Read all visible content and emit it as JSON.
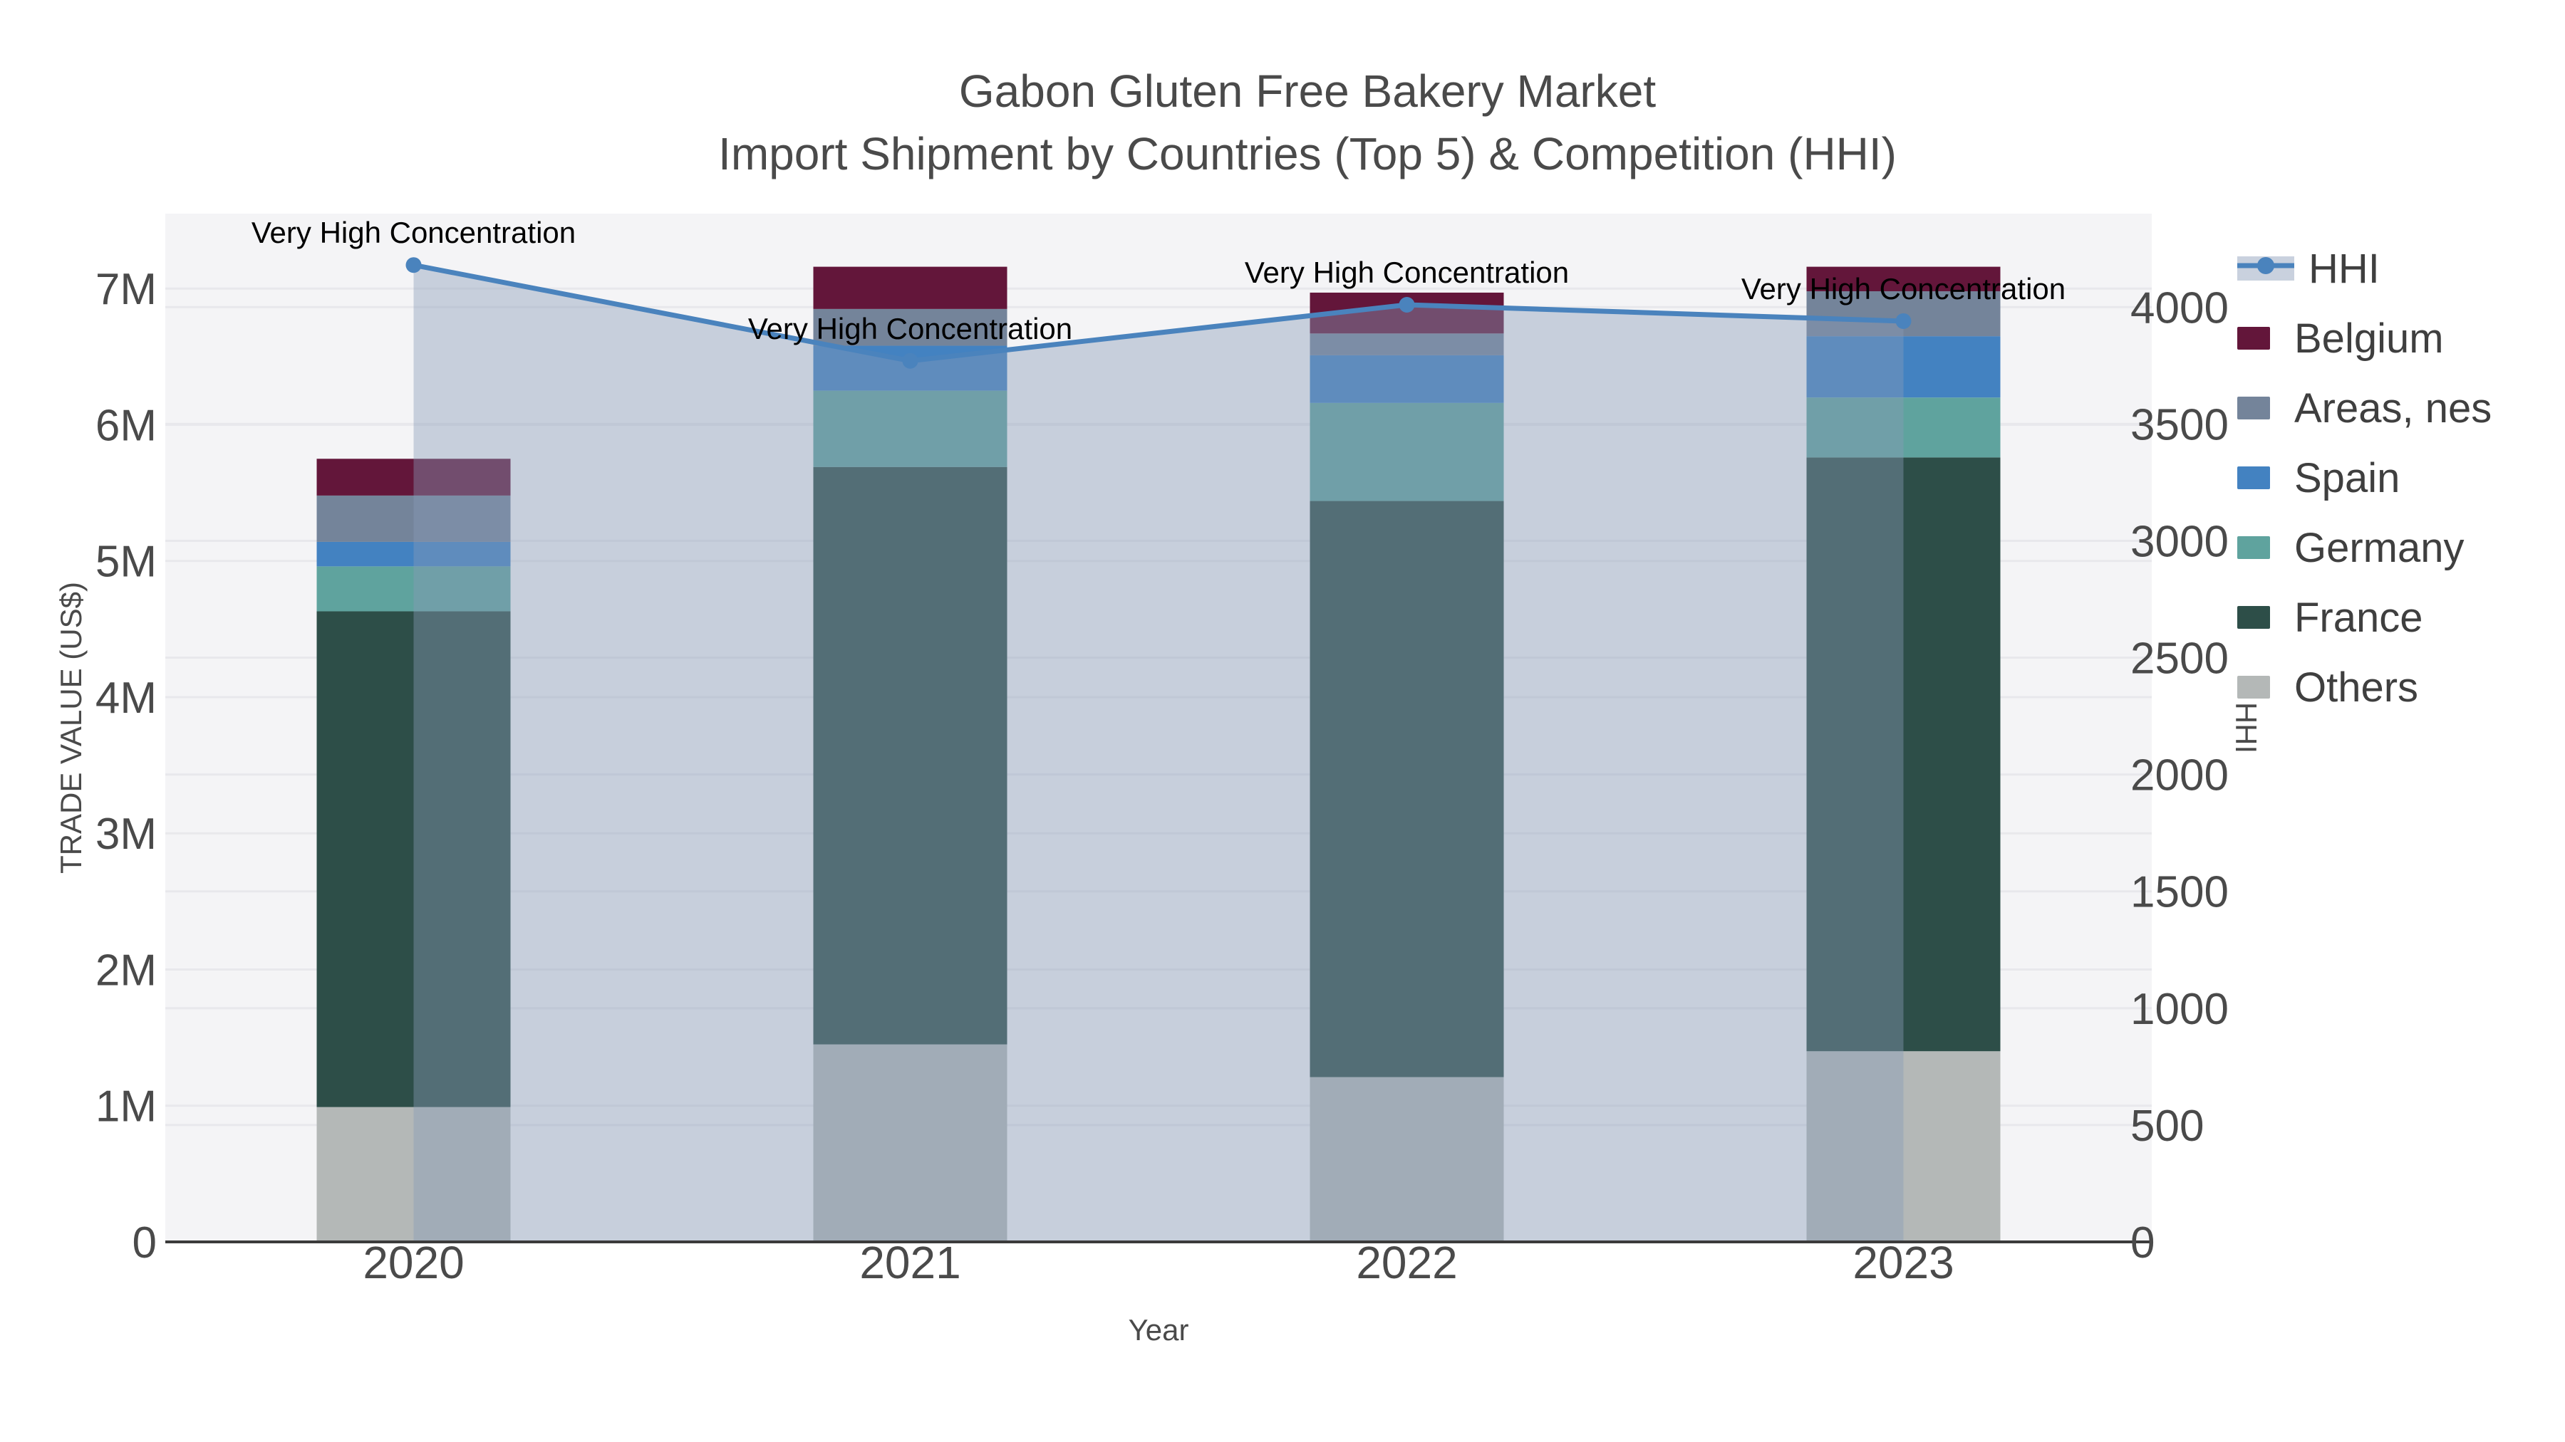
{
  "title": {
    "line1": "Gabon Gluten Free Bakery Market",
    "line2": "Import Shipment by Countries (Top 5) & Competition (HHI)"
  },
  "chart_data": {
    "type": "bar",
    "subtype": "stacked-bars-with-line-area-dual-axis",
    "categories": [
      "2020",
      "2021",
      "2022",
      "2023"
    ],
    "x_title": "Year",
    "y_left": {
      "title": "TRADE VALUE (US$)",
      "unit": "US$ (millions shown as M)",
      "tick_labels": [
        "0",
        "1M",
        "2M",
        "3M",
        "4M",
        "5M",
        "6M",
        "7M"
      ],
      "tick_values_musd": [
        0,
        1,
        2,
        3,
        4,
        5,
        6,
        7
      ],
      "range_musd": [
        0,
        7.55
      ],
      "grid": true
    },
    "y_right": {
      "title": "HHI",
      "tick_labels": [
        "0",
        "500",
        "1000",
        "1500",
        "2000",
        "2500",
        "3000",
        "3500",
        "4000"
      ],
      "tick_values": [
        0,
        500,
        1000,
        1500,
        2000,
        2500,
        3000,
        3500,
        4000
      ],
      "range": [
        0,
        4400
      ],
      "grid": true
    },
    "series": [
      {
        "name": "Others",
        "color": "#b4b8b7",
        "values_musd": [
          0.99,
          1.45,
          1.21,
          1.4
        ]
      },
      {
        "name": "France",
        "color": "#2d4e48",
        "values_musd": [
          3.64,
          4.24,
          4.23,
          4.36
        ]
      },
      {
        "name": "Germany",
        "color": "#5fa39e",
        "values_musd": [
          0.33,
          0.56,
          0.72,
          0.44
        ]
      },
      {
        "name": "Spain",
        "color": "#4382c1",
        "values_musd": [
          0.18,
          0.33,
          0.35,
          0.45
        ]
      },
      {
        "name": "Areas, nes",
        "color": "#74849a",
        "values_musd": [
          0.34,
          0.27,
          0.16,
          0.33
        ]
      },
      {
        "name": "Belgium",
        "color": "#63163a",
        "values_musd": [
          0.27,
          0.31,
          0.3,
          0.18
        ]
      }
    ],
    "stack_totals_musd": [
      5.75,
      7.16,
      6.97,
      7.16
    ],
    "hhi_line": {
      "name": "HHI",
      "values": [
        4180,
        3770,
        4010,
        3940
      ],
      "line_color": "#4a83bd",
      "marker_color": "#4a83bd",
      "area_fill_color": "rgba(136,155,183,0.42)"
    },
    "annotations": [
      {
        "x": "2020",
        "text": "Very High Concentration"
      },
      {
        "x": "2021",
        "text": "Very High Concentration"
      },
      {
        "x": "2022",
        "text": "Very High Concentration"
      },
      {
        "x": "2023",
        "text": "Very High Concentration"
      }
    ],
    "legend": {
      "position": "top-right",
      "items": [
        {
          "label": "HHI",
          "type": "line",
          "color": "#4a83bd",
          "band_color": "#c9d1de"
        },
        {
          "label": "Belgium",
          "type": "patch",
          "color": "#63163a"
        },
        {
          "label": "Areas, nes",
          "type": "patch",
          "color": "#74849a"
        },
        {
          "label": "Spain",
          "type": "patch",
          "color": "#4382c1"
        },
        {
          "label": "Germany",
          "type": "patch",
          "color": "#5fa39e"
        },
        {
          "label": "France",
          "type": "patch",
          "color": "#2d4e48"
        },
        {
          "label": "Others",
          "type": "patch",
          "color": "#b4b8b7"
        }
      ]
    },
    "colors": {
      "plot_bg": "#f4f4f6",
      "grid": "#e8e8ec",
      "axis_line": "#3b3b3b",
      "tick_text": "#4a4a4a",
      "annotation_text": "#000000"
    }
  }
}
